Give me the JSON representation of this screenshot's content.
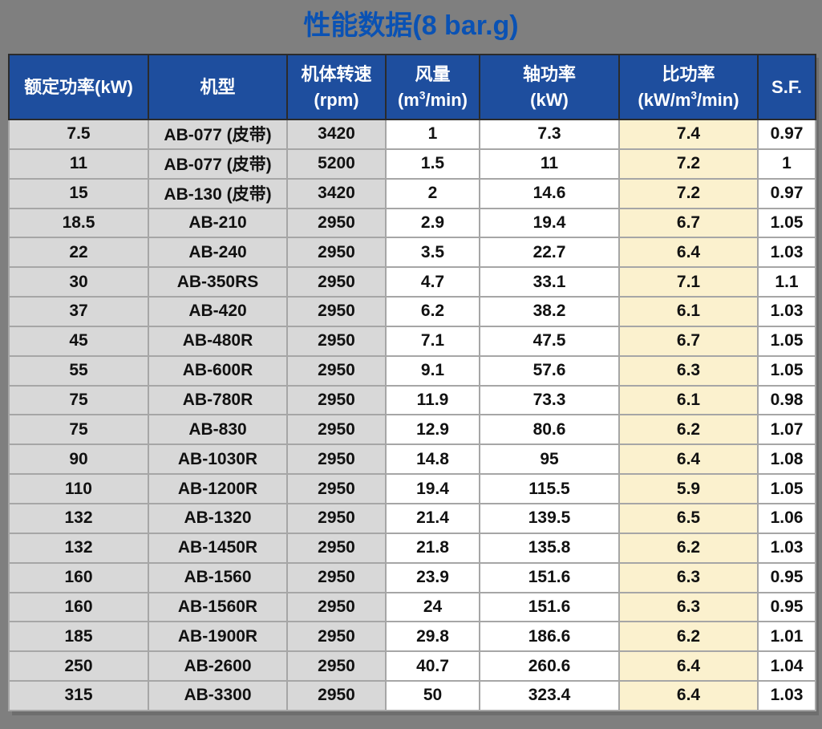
{
  "title": {
    "text": "性能数据(8 bar.g)"
  },
  "colors": {
    "page_bg": "#7F7F7F",
    "title_text": "#0A52B4",
    "header_bg": "#1E4E9E",
    "header_text": "#FFFFFF",
    "cell_gray": "#D8D8D8",
    "cell_white": "#FFFFFF",
    "cell_cream": "#FBF1CE",
    "gridline": "#A6A6A6",
    "shadow": "#6E6E6E"
  },
  "table": {
    "headers": [
      {
        "id": "rated-power",
        "lines": [
          "额定功率(kW)"
        ]
      },
      {
        "id": "model",
        "lines": [
          "机型"
        ]
      },
      {
        "id": "body-speed",
        "lines": [
          "机体转速",
          "(rpm)"
        ]
      },
      {
        "id": "air-flow",
        "lines": [
          "风量",
          "(m³/min)"
        ]
      },
      {
        "id": "shaft-power",
        "lines": [
          "轴功率",
          "(kW)"
        ]
      },
      {
        "id": "specific-power",
        "lines": [
          "比功率",
          "(kW/m³/min)"
        ]
      },
      {
        "id": "service-factor",
        "lines": [
          "S.F."
        ]
      }
    ],
    "rows": [
      [
        "7.5",
        "AB-077 (皮带)",
        "3420",
        "1",
        "7.3",
        "7.4",
        "0.97"
      ],
      [
        "11",
        "AB-077 (皮带)",
        "5200",
        "1.5",
        "11",
        "7.2",
        "1"
      ],
      [
        "15",
        "AB-130 (皮带)",
        "3420",
        "2",
        "14.6",
        "7.2",
        "0.97"
      ],
      [
        "18.5",
        "AB-210",
        "2950",
        "2.9",
        "19.4",
        "6.7",
        "1.05"
      ],
      [
        "22",
        "AB-240",
        "2950",
        "3.5",
        "22.7",
        "6.4",
        "1.03"
      ],
      [
        "30",
        "AB-350RS",
        "2950",
        "4.7",
        "33.1",
        "7.1",
        "1.1"
      ],
      [
        "37",
        "AB-420",
        "2950",
        "6.2",
        "38.2",
        "6.1",
        "1.03"
      ],
      [
        "45",
        "AB-480R",
        "2950",
        "7.1",
        "47.5",
        "6.7",
        "1.05"
      ],
      [
        "55",
        "AB-600R",
        "2950",
        "9.1",
        "57.6",
        "6.3",
        "1.05"
      ],
      [
        "75",
        "AB-780R",
        "2950",
        "11.9",
        "73.3",
        "6.1",
        "0.98"
      ],
      [
        "75",
        "AB-830",
        "2950",
        "12.9",
        "80.6",
        "6.2",
        "1.07"
      ],
      [
        "90",
        "AB-1030R",
        "2950",
        "14.8",
        "95",
        "6.4",
        "1.08"
      ],
      [
        "110",
        "AB-1200R",
        "2950",
        "19.4",
        "115.5",
        "5.9",
        "1.05"
      ],
      [
        "132",
        "AB-1320",
        "2950",
        "21.4",
        "139.5",
        "6.5",
        "1.06"
      ],
      [
        "132",
        "AB-1450R",
        "2950",
        "21.8",
        "135.8",
        "6.2",
        "1.03"
      ],
      [
        "160",
        "AB-1560",
        "2950",
        "23.9",
        "151.6",
        "6.3",
        "0.95"
      ],
      [
        "160",
        "AB-1560R",
        "2950",
        "24",
        "151.6",
        "6.3",
        "0.95"
      ],
      [
        "185",
        "AB-1900R",
        "2950",
        "29.8",
        "186.6",
        "6.2",
        "1.01"
      ],
      [
        "250",
        "AB-2600",
        "2950",
        "40.7",
        "260.6",
        "6.4",
        "1.04"
      ],
      [
        "315",
        "AB-3300",
        "2950",
        "50",
        "323.4",
        "6.4",
        "1.03"
      ]
    ]
  }
}
